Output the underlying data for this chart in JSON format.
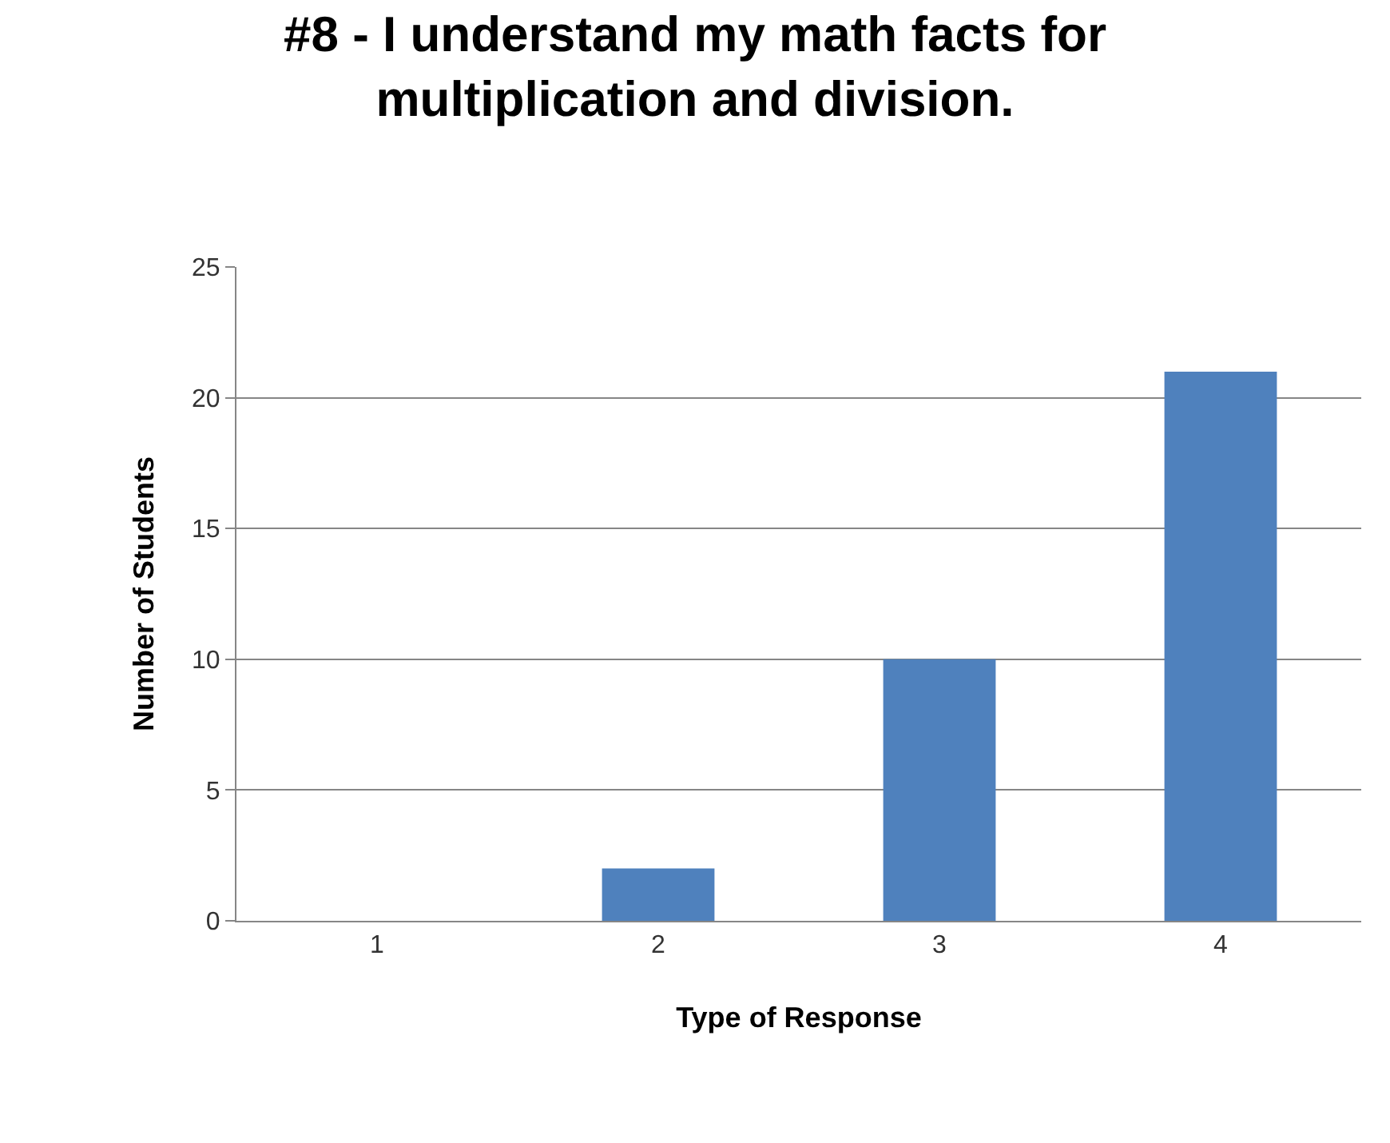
{
  "chart_data": {
    "type": "bar",
    "title": "#8 - I understand my math facts for multiplication and division.",
    "xlabel": "Type of Response",
    "ylabel": "Number of Students",
    "categories": [
      "1",
      "2",
      "3",
      "4"
    ],
    "values": [
      0,
      2,
      10,
      21
    ],
    "color": "#4f81bd",
    "ylim": [
      0,
      25
    ],
    "yticks": [
      0,
      5,
      10,
      15,
      20,
      25
    ],
    "grid": "y"
  }
}
